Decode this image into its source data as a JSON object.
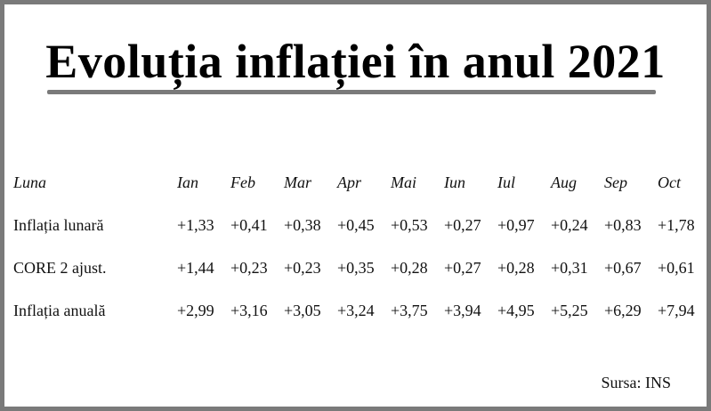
{
  "page": {
    "title": "Evoluția inflației în anul 2021",
    "source": "Sursa: INS"
  },
  "chart_data": {
    "type": "table",
    "title": "Evoluția inflației în anul 2021",
    "header_label": "Luna",
    "categories": [
      "Ian",
      "Feb",
      "Mar",
      "Apr",
      "Mai",
      "Iun",
      "Iul",
      "Aug",
      "Sep",
      "Oct"
    ],
    "series": [
      {
        "name": "Inflația lunară",
        "display": [
          "+1,33",
          "+0,41",
          "+0,38",
          "+0,45",
          "+0,53",
          "+0,27",
          "+0,97",
          "+0,24",
          "+0,83",
          "+1,78"
        ],
        "values": [
          1.33,
          0.41,
          0.38,
          0.45,
          0.53,
          0.27,
          0.97,
          0.24,
          0.83,
          1.78
        ]
      },
      {
        "name": "CORE 2 ajust.",
        "display": [
          "+1,44",
          "+0,23",
          "+0,23",
          "+0,35",
          "+0,28",
          "+0,27",
          "+0,28",
          "+0,31",
          "+0,67",
          "+0,61"
        ],
        "values": [
          1.44,
          0.23,
          0.23,
          0.35,
          0.28,
          0.27,
          0.28,
          0.31,
          0.67,
          0.61
        ]
      },
      {
        "name": "Inflația anuală",
        "display": [
          "+2,99",
          "+3,16",
          "+3,05",
          "+3,24",
          "+3,75",
          "+3,94",
          "+4,95",
          "+5,25",
          "+6,29",
          "+7,94"
        ],
        "values": [
          2.99,
          3.16,
          3.05,
          3.24,
          3.75,
          3.94,
          4.95,
          5.25,
          6.29,
          7.94
        ]
      }
    ]
  }
}
